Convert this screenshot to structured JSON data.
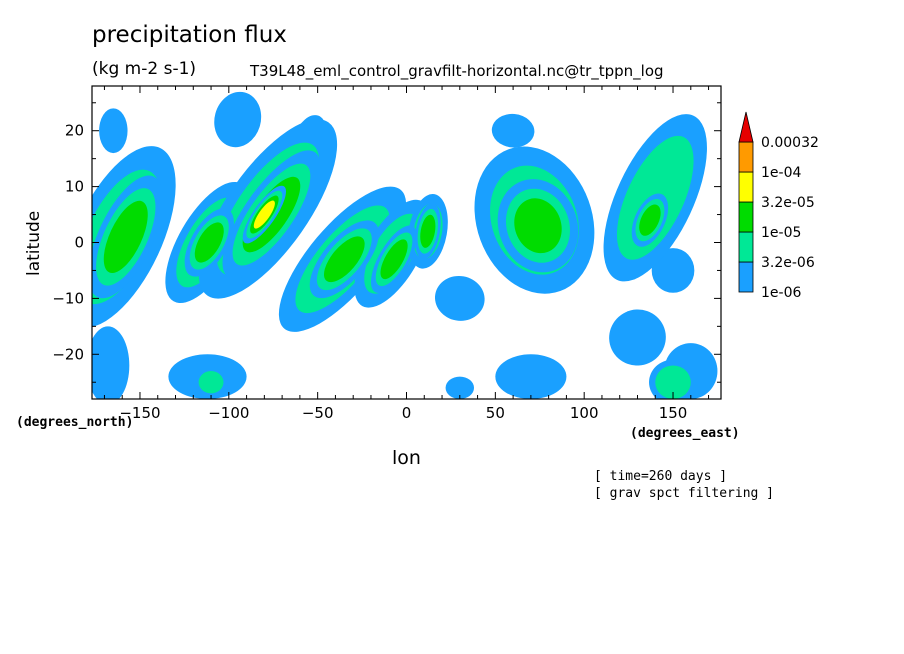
{
  "chart_data": {
    "type": "heatmap",
    "title": "precipitation flux",
    "units": "(kg m-2 s-1)",
    "dataset": "T39L48_eml_control_gravfilt-horizontal.nc@tr_tppn_log",
    "xlabel": "lon",
    "ylabel": "latitude",
    "x_unit_label": "(degrees_east)",
    "y_unit_label": "(degrees_north)",
    "xlim": [
      -177,
      177
    ],
    "ylim": [
      -28,
      28
    ],
    "xticks": [
      -150,
      -100,
      -50,
      0,
      50,
      100,
      150
    ],
    "xtick_labels": [
      "−150",
      "−100",
      "−50",
      "0",
      "50",
      "100",
      "150"
    ],
    "yticks": [
      -20,
      -10,
      0,
      10,
      20
    ],
    "ytick_labels": [
      "−20",
      "−10",
      "0",
      "10",
      "20"
    ],
    "levels": [
      {
        "label": "1e-06",
        "color": "#1aa0ff"
      },
      {
        "label": "3.2e-06",
        "color": "#00e896"
      },
      {
        "label": "1e-05",
        "color": "#00dc00"
      },
      {
        "label": "3.2e-05",
        "color": "#ffff00"
      },
      {
        "label": "1e-04",
        "color": "#ff9a00"
      },
      {
        "label": "0.00032",
        "color": "#e60000"
      }
    ],
    "blobs": [
      {
        "lon": -162,
        "lat": 1,
        "rlon": 18,
        "rlat": 13,
        "rot": 25,
        "lvl": 2
      },
      {
        "lon": -158,
        "lat": 1,
        "rlon": 9,
        "rlat": 7,
        "rot": 25,
        "lvl": 3
      },
      {
        "lon": -112,
        "lat": 0,
        "rlon": 12,
        "rlat": 9,
        "rot": 30,
        "lvl": 2
      },
      {
        "lon": -111,
        "lat": 0,
        "rlon": 6,
        "rlat": 4,
        "rot": 30,
        "lvl": 3
      },
      {
        "lon": -78,
        "lat": 6,
        "rlon": 17,
        "rlat": 14,
        "rot": 35,
        "lvl": 2
      },
      {
        "lon": -76,
        "lat": 5,
        "rlon": 9,
        "rlat": 8,
        "rot": 35,
        "lvl": 3
      },
      {
        "lon": -80,
        "lat": 5,
        "rlon": 3,
        "rlat": 3,
        "rot": 35,
        "lvl": 4
      },
      {
        "lon": -36,
        "lat": -3,
        "rlon": 14,
        "rlat": 12,
        "rot": 40,
        "lvl": 2
      },
      {
        "lon": -35,
        "lat": -3,
        "rlon": 7,
        "rlat": 5,
        "rot": 40,
        "lvl": 3
      },
      {
        "lon": -8,
        "lat": -2,
        "rlon": 11,
        "rlat": 8,
        "rot": 30,
        "lvl": 2
      },
      {
        "lon": -7,
        "lat": -3,
        "rlon": 5,
        "rlat": 4,
        "rot": 30,
        "lvl": 3
      },
      {
        "lon": 12,
        "lat": 2,
        "rlon": 8,
        "rlat": 5,
        "rot": 10,
        "lvl": 2
      },
      {
        "lon": 12,
        "lat": 2,
        "rlon": 4,
        "rlat": 3,
        "rot": 10,
        "lvl": 3
      },
      {
        "lon": 72,
        "lat": 4,
        "rlon": 24,
        "rlat": 10,
        "rot": -20,
        "lvl": 2
      },
      {
        "lon": 74,
        "lat": 3,
        "rlon": 13,
        "rlat": 5,
        "rot": -20,
        "lvl": 3
      },
      {
        "lon": 140,
        "lat": 8,
        "rlon": 16,
        "rlat": 12,
        "rot": 25,
        "lvl": 2
      },
      {
        "lon": 137,
        "lat": 4,
        "rlon": 5,
        "rlat": 3,
        "rot": 25,
        "lvl": 3
      },
      {
        "lon": -165,
        "lat": 20,
        "rlon": 8,
        "rlat": 4,
        "rot": 0,
        "lvl": 1
      },
      {
        "lon": -95,
        "lat": 22,
        "rlon": 13,
        "rlat": 5,
        "rot": 15,
        "lvl": 1
      },
      {
        "lon": -55,
        "lat": 18,
        "rlon": 9,
        "rlat": 5,
        "rot": 20,
        "lvl": 1
      },
      {
        "lon": 60,
        "lat": 20,
        "rlon": 12,
        "rlat": 3,
        "rot": 5,
        "lvl": 1
      },
      {
        "lon": 150,
        "lat": -5,
        "rlon": 12,
        "rlat": 4,
        "rot": 0,
        "lvl": 1
      },
      {
        "lon": 30,
        "lat": -10,
        "rlon": 14,
        "rlat": 4,
        "rot": 10,
        "lvl": 1
      },
      {
        "lon": -168,
        "lat": -22,
        "rlon": 12,
        "rlat": 7,
        "rot": 0,
        "lvl": 1
      },
      {
        "lon": -112,
        "lat": -24,
        "rlon": 22,
        "rlat": 4,
        "rot": 0,
        "lvl": 1
      },
      {
        "lon": -110,
        "lat": -25,
        "rlon": 7,
        "rlat": 2,
        "rot": 0,
        "lvl": 2
      },
      {
        "lon": 70,
        "lat": -24,
        "rlon": 20,
        "rlat": 4,
        "rot": 0,
        "lvl": 1
      },
      {
        "lon": 160,
        "lat": -23,
        "rlon": 15,
        "rlat": 5,
        "rot": 0,
        "lvl": 1
      },
      {
        "lon": 150,
        "lat": -25,
        "rlon": 10,
        "rlat": 3,
        "rot": 0,
        "lvl": 2
      },
      {
        "lon": 130,
        "lat": -17,
        "rlon": 16,
        "rlat": 5,
        "rot": -25,
        "lvl": 1
      },
      {
        "lon": 30,
        "lat": -26,
        "rlon": 8,
        "rlat": 2,
        "rot": 0,
        "lvl": 1
      }
    ]
  },
  "annotations": {
    "time": "[ time=260 days ]",
    "filter": "[ grav spct filtering ]"
  }
}
